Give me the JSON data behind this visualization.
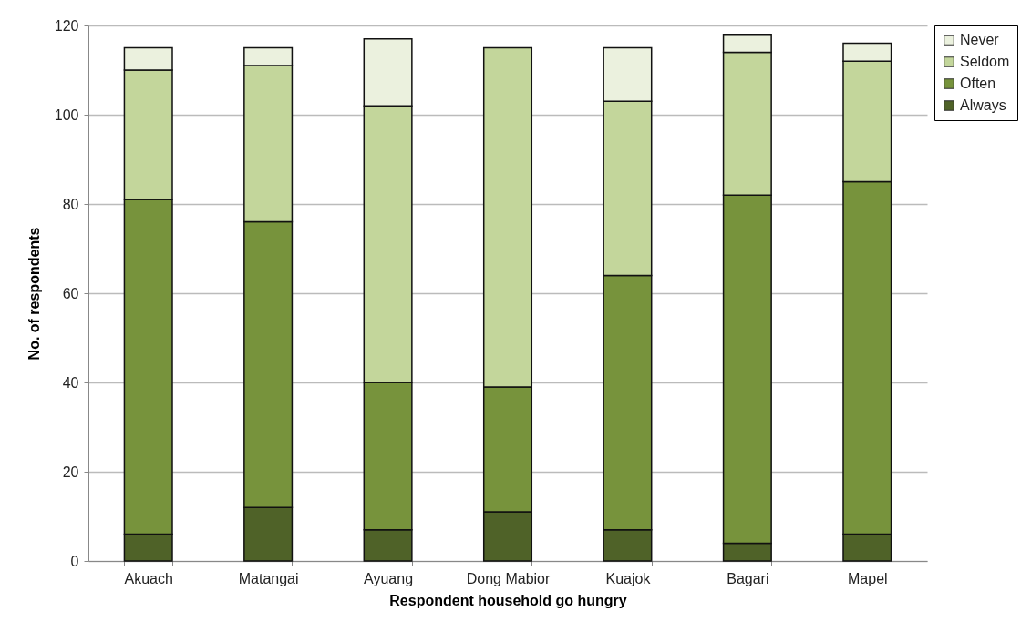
{
  "chart_data": {
    "type": "bar",
    "stacked": true,
    "xlabel": "Respondent household go hungry",
    "ylabel": "No. of respondents",
    "categories": [
      "Akuach",
      "Matangai",
      "Ayuang",
      "Dong Mabior",
      "Kuajok",
      "Bagari",
      "Mapel"
    ],
    "series": [
      {
        "name": "Always",
        "color": "#4f6228",
        "values": [
          6,
          12,
          7,
          11,
          7,
          4,
          6
        ]
      },
      {
        "name": "Often",
        "color": "#77933c",
        "values": [
          75,
          64,
          33,
          28,
          57,
          78,
          79
        ]
      },
      {
        "name": "Seldom",
        "color": "#c3d69b",
        "values": [
          29,
          35,
          62,
          76,
          39,
          32,
          27
        ]
      },
      {
        "name": "Never",
        "color": "#ebf1de",
        "values": [
          5,
          4,
          15,
          0,
          12,
          4,
          4
        ]
      }
    ],
    "ylim": [
      0,
      120
    ],
    "yticks": [
      0,
      20,
      40,
      60,
      80,
      100,
      120
    ],
    "grid": "y",
    "legend": "right"
  }
}
